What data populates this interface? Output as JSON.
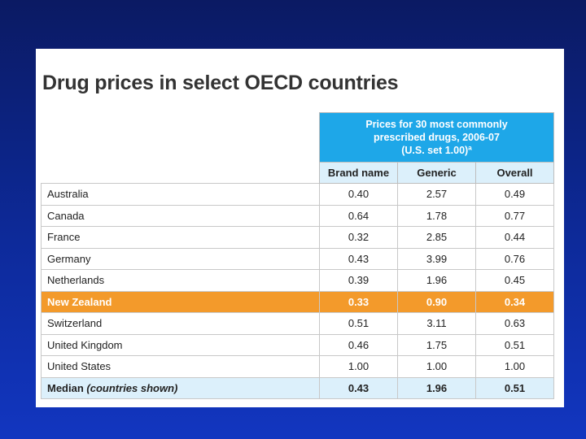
{
  "title": "Drug prices in select OECD countries",
  "table": {
    "group_header": {
      "line1": "Prices for 30 most commonly",
      "line2": "prescribed drugs, 2006-07",
      "line3": "(U.S. set 1.00)ª"
    },
    "columns": [
      "Brand name",
      "Generic",
      "Overall"
    ],
    "rows": [
      {
        "country": "Australia",
        "brand": "0.40",
        "generic": "2.57",
        "overall": "0.49"
      },
      {
        "country": "Canada",
        "brand": "0.64",
        "generic": "1.78",
        "overall": "0.77"
      },
      {
        "country": "France",
        "brand": "0.32",
        "generic": "2.85",
        "overall": "0.44"
      },
      {
        "country": "Germany",
        "brand": "0.43",
        "generic": "3.99",
        "overall": "0.76"
      },
      {
        "country": "Netherlands",
        "brand": "0.39",
        "generic": "1.96",
        "overall": "0.45"
      },
      {
        "country": "New Zealand",
        "brand": "0.33",
        "generic": "0.90",
        "overall": "0.34"
      },
      {
        "country": "Switzerland",
        "brand": "0.51",
        "generic": "3.11",
        "overall": "0.63"
      },
      {
        "country": "United Kingdom",
        "brand": "0.46",
        "generic": "1.75",
        "overall": "0.51"
      },
      {
        "country": "United States",
        "brand": "1.00",
        "generic": "1.00",
        "overall": "1.00"
      }
    ],
    "median": {
      "label": "Median",
      "note": "(countries shown)",
      "brand": "0.43",
      "generic": "1.96",
      "overall": "0.51"
    }
  }
}
